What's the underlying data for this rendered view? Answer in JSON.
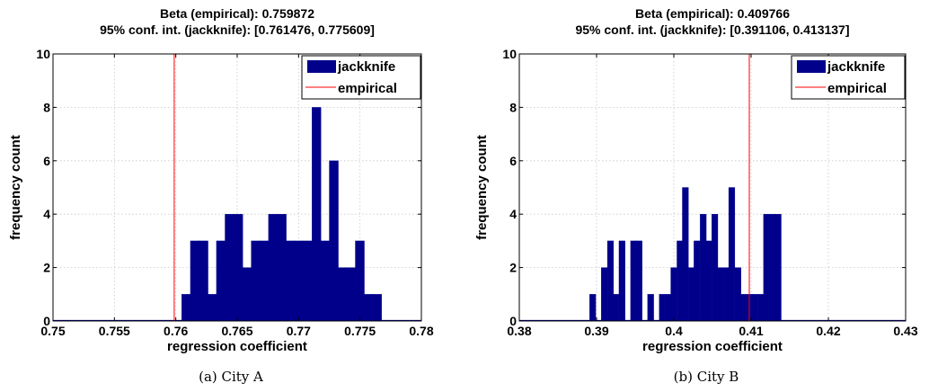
{
  "chart_data": [
    {
      "type": "bar",
      "title": "Beta (empirical): 0.759872",
      "subtitle": "95% conf. int. (jackknife): [0.761476, 0.775609]",
      "xlabel": "regression coefficient",
      "ylabel": "frequency count",
      "caption": "(a) City A",
      "xlim": [
        0.75,
        0.78
      ],
      "ylim": [
        0,
        10
      ],
      "xticks": [
        0.75,
        0.755,
        0.76,
        0.765,
        0.77,
        0.775,
        0.78
      ],
      "xtick_labels": [
        "0.75",
        "0.755",
        "0.76",
        "0.765",
        "0.77",
        "0.775",
        "0.78"
      ],
      "yticks": [
        0,
        2,
        4,
        6,
        8,
        10
      ],
      "ytick_labels": [
        "0",
        "2",
        "4",
        "6",
        "8",
        "10"
      ],
      "grid": true,
      "legend": {
        "position": "top-right",
        "entries": [
          "jackknife",
          "empirical"
        ]
      },
      "series": [
        {
          "name": "jackknife",
          "kind": "histogram",
          "color": "#00008b",
          "bin_width": 0.000707,
          "bins": [
            [
              0.76048,
              1
            ],
            [
              0.76119,
              3
            ],
            [
              0.76189,
              3
            ],
            [
              0.7626,
              1
            ],
            [
              0.76331,
              3
            ],
            [
              0.76401,
              4
            ],
            [
              0.76472,
              4
            ],
            [
              0.76543,
              2
            ],
            [
              0.76614,
              3
            ],
            [
              0.76684,
              3
            ],
            [
              0.76755,
              4
            ],
            [
              0.76826,
              4
            ],
            [
              0.76896,
              3
            ],
            [
              0.76967,
              3
            ],
            [
              0.77038,
              3
            ],
            [
              0.77109,
              8
            ],
            [
              0.77179,
              3
            ],
            [
              0.7725,
              6
            ],
            [
              0.77321,
              2
            ],
            [
              0.77391,
              2
            ],
            [
              0.77462,
              3
            ],
            [
              0.77533,
              1
            ],
            [
              0.77603,
              1
            ]
          ]
        },
        {
          "name": "empirical",
          "kind": "vline",
          "color": "#ff0000",
          "x": 0.759872
        }
      ]
    },
    {
      "type": "bar",
      "title": "Beta (empirical): 0.409766",
      "subtitle": "95% conf. int. (jackknife): [0.391106, 0.413137]",
      "xlabel": "regression coefficient",
      "ylabel": "frequency count",
      "caption": "(b) City B",
      "xlim": [
        0.38,
        0.43
      ],
      "ylim": [
        0,
        10
      ],
      "xticks": [
        0.38,
        0.39,
        0.4,
        0.41,
        0.42,
        0.43
      ],
      "xtick_labels": [
        "0.38",
        "0.39",
        "0.4",
        "0.41",
        "0.42",
        "0.43"
      ],
      "yticks": [
        0,
        2,
        4,
        6,
        8,
        10
      ],
      "ytick_labels": [
        "0",
        "2",
        "4",
        "6",
        "8",
        "10"
      ],
      "grid": true,
      "legend": {
        "position": "top-right",
        "entries": [
          "jackknife",
          "empirical"
        ]
      },
      "series": [
        {
          "name": "jackknife",
          "kind": "histogram",
          "color": "#00008b",
          "bin_width": 0.00075,
          "bins": [
            [
              0.3891,
              1
            ],
            [
              0.3899,
              0
            ],
            [
              0.3906,
              2
            ],
            [
              0.3914,
              3
            ],
            [
              0.3921,
              1
            ],
            [
              0.3929,
              3
            ],
            [
              0.3936,
              0
            ],
            [
              0.3944,
              3
            ],
            [
              0.3951,
              3
            ],
            [
              0.3959,
              0
            ],
            [
              0.3966,
              1
            ],
            [
              0.3974,
              0
            ],
            [
              0.3981,
              1
            ],
            [
              0.3989,
              1
            ],
            [
              0.3996,
              2
            ],
            [
              0.4004,
              3
            ],
            [
              0.4011,
              5
            ],
            [
              0.4019,
              2
            ],
            [
              0.4026,
              3
            ],
            [
              0.4034,
              4
            ],
            [
              0.4041,
              3
            ],
            [
              0.4049,
              4
            ],
            [
              0.4056,
              2
            ],
            [
              0.4064,
              2
            ],
            [
              0.4071,
              5
            ],
            [
              0.4079,
              2
            ],
            [
              0.4086,
              1
            ],
            [
              0.4094,
              1
            ],
            [
              0.4101,
              1
            ],
            [
              0.4109,
              1
            ],
            [
              0.4116,
              4
            ],
            [
              0.4124,
              4
            ],
            [
              0.4131,
              4
            ]
          ]
        },
        {
          "name": "empirical",
          "kind": "vline",
          "color": "#ff0000",
          "x": 0.409766
        }
      ]
    }
  ]
}
